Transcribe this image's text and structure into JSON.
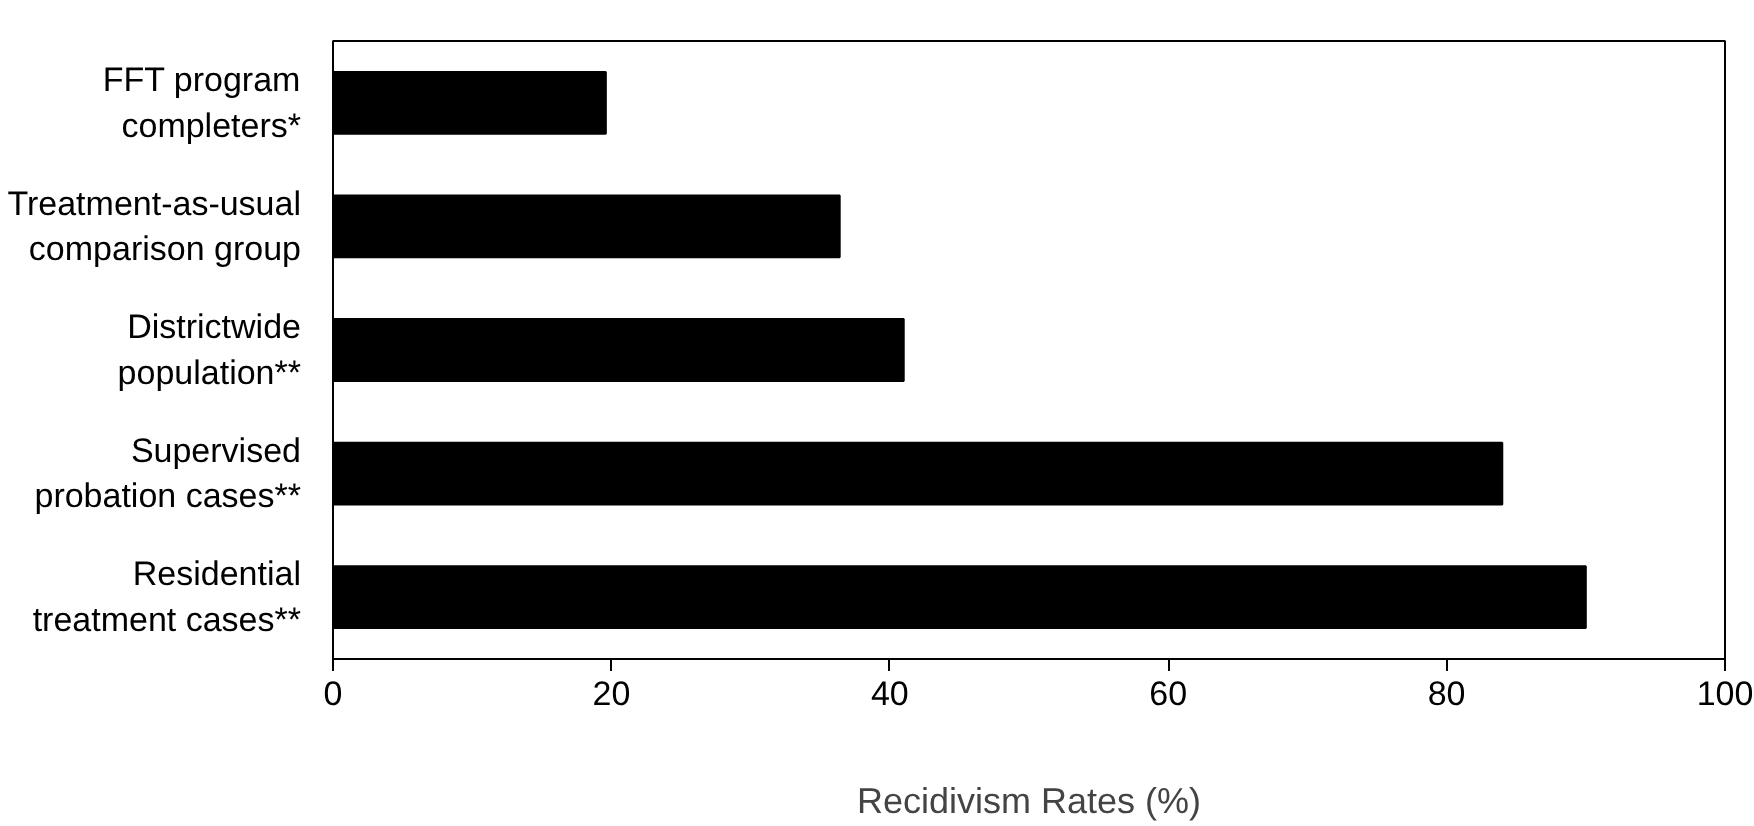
{
  "chart_data": {
    "type": "bar",
    "orientation": "horizontal",
    "xlabel": "Recidivism Rates (%)",
    "categories": [
      "FFT program\ncompleters*",
      "Treatment-as-usual\ncomparison group",
      "Districtwide\npopulation**",
      "Supervised\nprobation cases**",
      "Residential\ntreatment cases**"
    ],
    "values": [
      19.6,
      36.4,
      41,
      84,
      90
    ],
    "color": "#000000",
    "xlim": [
      0,
      100
    ],
    "xticks": [
      0,
      20,
      40,
      60,
      80,
      100
    ],
    "grid": false
  }
}
